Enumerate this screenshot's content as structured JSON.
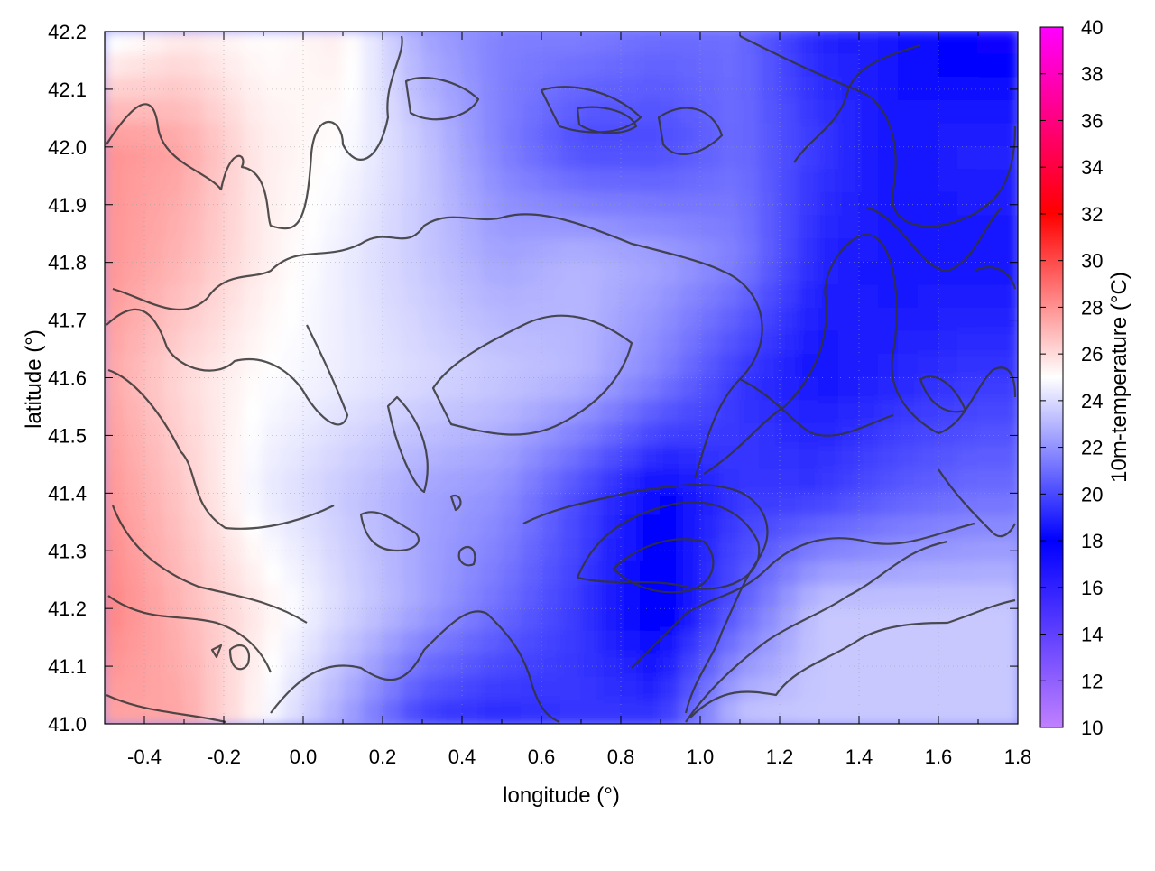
{
  "chart_data": {
    "type": "heatmap",
    "xlabel": "longitude (°)",
    "ylabel": "latitude (°)",
    "colorbar_label": "10m-temperature (°C)",
    "xlim": [
      -0.5,
      1.8
    ],
    "ylim": [
      41.0,
      42.2
    ],
    "clim": [
      10,
      40
    ],
    "x_ticks": [
      -0.4,
      -0.2,
      0.0,
      0.2,
      0.4,
      0.6,
      0.8,
      1.0,
      1.2,
      1.4,
      1.6,
      1.8
    ],
    "x_tick_labels": [
      "-0.4",
      "-0.2",
      "0.0",
      "0.2",
      "0.4",
      "0.6",
      "0.8",
      "1.0",
      "1.2",
      "1.4",
      "1.6",
      "1.8"
    ],
    "y_ticks": [
      41.0,
      41.1,
      41.2,
      41.3,
      41.4,
      41.5,
      41.6,
      41.7,
      41.8,
      41.9,
      42.0,
      42.1,
      42.2
    ],
    "y_tick_labels": [
      "41.0",
      "41.1",
      "41.2",
      "41.3",
      "41.4",
      "41.5",
      "41.6",
      "41.7",
      "41.8",
      "41.9",
      "42.0",
      "42.1",
      "42.2"
    ],
    "colorbar_ticks": [
      10,
      12,
      14,
      16,
      18,
      20,
      22,
      24,
      26,
      28,
      30,
      32,
      34,
      36,
      38,
      40
    ],
    "colorbar_tick_labels": [
      "10",
      "12",
      "14",
      "16",
      "18",
      "20",
      "22",
      "24",
      "26",
      "28",
      "30",
      "32",
      "34",
      "36",
      "38",
      "40"
    ],
    "colormap": [
      {
        "value": 10,
        "color": "#c080ff"
      },
      {
        "value": 18,
        "color": "#0000ff"
      },
      {
        "value": 25,
        "color": "#ffffff"
      },
      {
        "value": 32,
        "color": "#ff0000"
      },
      {
        "value": 40,
        "color": "#ff00ff"
      }
    ],
    "grid": true,
    "contours": true,
    "approx_field_samples": {
      "lon": [
        -0.5,
        -0.3,
        -0.1,
        0.1,
        0.3,
        0.5,
        0.7,
        0.9,
        1.1,
        1.3,
        1.5,
        1.7,
        1.8
      ],
      "lat": [
        42.2,
        42.0,
        41.8,
        41.6,
        41.4,
        41.2,
        41.0
      ],
      "temperature": [
        [
          24.5,
          25.5,
          25.0,
          25.5,
          22.5,
          21.5,
          21.5,
          21.0,
          21.0,
          19.0,
          18.5,
          17.5,
          17.5
        ],
        [
          28.0,
          27.5,
          25.5,
          25.0,
          23.5,
          21.5,
          20.0,
          20.0,
          21.0,
          19.5,
          18.5,
          19.0,
          19.0
        ],
        [
          28.0,
          27.0,
          25.5,
          24.5,
          23.5,
          22.5,
          23.0,
          22.5,
          21.5,
          19.0,
          18.5,
          18.5,
          18.5
        ],
        [
          27.5,
          26.0,
          25.0,
          24.5,
          24.0,
          23.5,
          23.0,
          21.5,
          19.5,
          18.5,
          19.0,
          19.5,
          19.5
        ],
        [
          28.0,
          26.5,
          24.5,
          23.5,
          22.5,
          22.0,
          20.0,
          18.0,
          19.5,
          19.5,
          20.5,
          21.0,
          21.0
        ],
        [
          28.5,
          27.0,
          25.5,
          24.0,
          22.5,
          21.0,
          19.5,
          17.5,
          20.5,
          23.5,
          23.5,
          23.5,
          23.5
        ],
        [
          27.5,
          27.5,
          25.0,
          22.5,
          19.5,
          19.0,
          19.5,
          19.5,
          23.5,
          23.5,
          23.5,
          23.5,
          23.5
        ]
      ]
    }
  }
}
